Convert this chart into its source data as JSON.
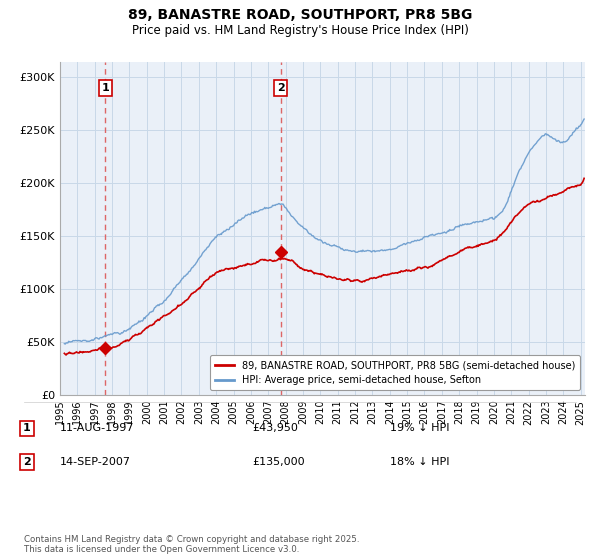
{
  "title_line1": "89, BANASTRE ROAD, SOUTHPORT, PR8 5BG",
  "title_line2": "Price paid vs. HM Land Registry's House Price Index (HPI)",
  "yticks": [
    0,
    50000,
    100000,
    150000,
    200000,
    250000,
    300000
  ],
  "ytick_labels": [
    "£0",
    "£50K",
    "£100K",
    "£150K",
    "£200K",
    "£250K",
    "£300K"
  ],
  "xlim_start": 1995.25,
  "xlim_end": 2025.25,
  "ylim": [
    0,
    315000
  ],
  "transaction1_date": "11-AUG-1997",
  "transaction1_price": 43950,
  "transaction1_pct": "19% ↓ HPI",
  "transaction1_x": 1997.61,
  "transaction2_date": "14-SEP-2007",
  "transaction2_price": 135000,
  "transaction2_pct": "18% ↓ HPI",
  "transaction2_x": 2007.71,
  "legend_label1": "89, BANASTRE ROAD, SOUTHPORT, PR8 5BG (semi-detached house)",
  "legend_label2": "HPI: Average price, semi-detached house, Sefton",
  "footer": "Contains HM Land Registry data © Crown copyright and database right 2025.\nThis data is licensed under the Open Government Licence v3.0.",
  "price_paid_color": "#cc0000",
  "hpi_color": "#6699cc",
  "dashed_line_color": "#dd6666",
  "plot_bg_color": "#eaf0f8",
  "fig_bg_color": "#ffffff"
}
